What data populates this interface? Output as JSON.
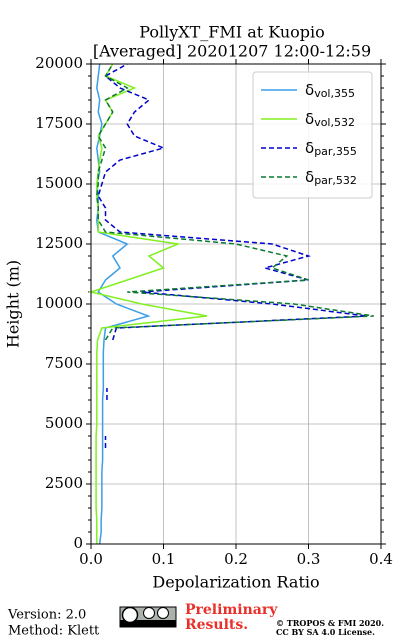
{
  "chart_data": {
    "type": "line",
    "title": "PollyXT_FMI at Kuopio",
    "subtitle": "[Averaged] 20201207 12:00-12:59",
    "x_label": "Depolarization Ratio",
    "y_label": "Height (m)",
    "y": [
      0,
      500,
      1000,
      1500,
      2000,
      2500,
      3000,
      3500,
      4000,
      4500,
      5000,
      5500,
      6000,
      6500,
      7000,
      7500,
      8000,
      8500,
      9000,
      9500,
      10000,
      10500,
      11000,
      11500,
      12000,
      12500,
      13000,
      13500,
      14000,
      14500,
      15000,
      15500,
      16000,
      16500,
      17000,
      17500,
      18000,
      18500,
      19000,
      19500,
      20000
    ],
    "series": [
      {
        "name": "δvol,355",
        "color": "#3a9ee8",
        "dashed": false,
        "values": [
          0.012,
          0.014,
          0.014,
          0.015,
          0.015,
          0.015,
          0.015,
          0.016,
          0.016,
          0.016,
          0.016,
          0.016,
          0.016,
          0.017,
          0.017,
          0.017,
          0.017,
          0.018,
          0.02,
          0.079,
          0.035,
          0.01,
          0.02,
          0.04,
          0.03,
          0.05,
          0.01,
          0.008,
          0.01,
          0.01,
          0.008,
          0.012,
          0.01,
          0.008,
          0.012,
          0.015,
          0.01,
          0.012,
          0.008,
          0.01,
          0.012
        ]
      },
      {
        "name": "δvol,532",
        "color": "#80f020",
        "dashed": false,
        "values": [
          0.008,
          0.008,
          0.008,
          0.007,
          0.007,
          0.007,
          0.007,
          0.007,
          0.007,
          0.007,
          0.008,
          0.008,
          0.008,
          0.008,
          0.008,
          0.008,
          0.008,
          0.009,
          0.015,
          0.16,
          0.07,
          0.0,
          0.05,
          0.1,
          0.08,
          0.12,
          0.01,
          0.01,
          0.01,
          0.008,
          0.008,
          0.01,
          0.012,
          0.015,
          0.01,
          0.02,
          0.03,
          0.02,
          0.06,
          0.02,
          0.03
        ]
      },
      {
        "name": "δpar,355",
        "color": "#0000cc",
        "dashed": true,
        "values": [
          null,
          null,
          null,
          null,
          null,
          null,
          null,
          null,
          0.02,
          0.02,
          null,
          null,
          0.022,
          0.022,
          null,
          null,
          null,
          0.03,
          0.035,
          0.38,
          0.25,
          0.07,
          0.3,
          0.24,
          0.3,
          0.25,
          0.04,
          0.02,
          0.02,
          0.01,
          0.015,
          0.02,
          0.04,
          0.1,
          0.06,
          0.05,
          0.06,
          0.08,
          0.04,
          0.02,
          0.05
        ]
      },
      {
        "name": "δpar,532",
        "color": "#0a7a30",
        "dashed": true,
        "values": [
          null,
          null,
          null,
          null,
          null,
          null,
          null,
          null,
          null,
          null,
          null,
          null,
          null,
          null,
          null,
          null,
          null,
          0.02,
          0.03,
          0.39,
          0.28,
          0.05,
          0.3,
          0.25,
          0.27,
          0.2,
          0.02,
          0.01,
          0.01,
          0.008,
          0.01,
          0.01,
          0.015,
          0.02,
          0.01,
          0.02,
          0.03,
          0.02,
          0.05,
          0.02,
          0.03
        ]
      }
    ],
    "xlim": [
      0,
      0.4
    ],
    "xticks": [
      {
        "value": 0,
        "label": "0.0"
      },
      0.1,
      0.2,
      0.3,
      0.4
    ],
    "ylim": [
      0,
      20000
    ],
    "yticks": [
      0,
      2500,
      5000,
      7500,
      10000,
      12500,
      15000,
      17500,
      20000
    ],
    "grid": true,
    "legend": "upper right"
  },
  "footer": {
    "version": "Version: 2.0",
    "method": "Method: Klett",
    "preliminary": [
      "Preliminary",
      "Results."
    ],
    "copyright": "© TROPOS & FMI 2020.",
    "license": "CC BY SA 4.0 License."
  }
}
